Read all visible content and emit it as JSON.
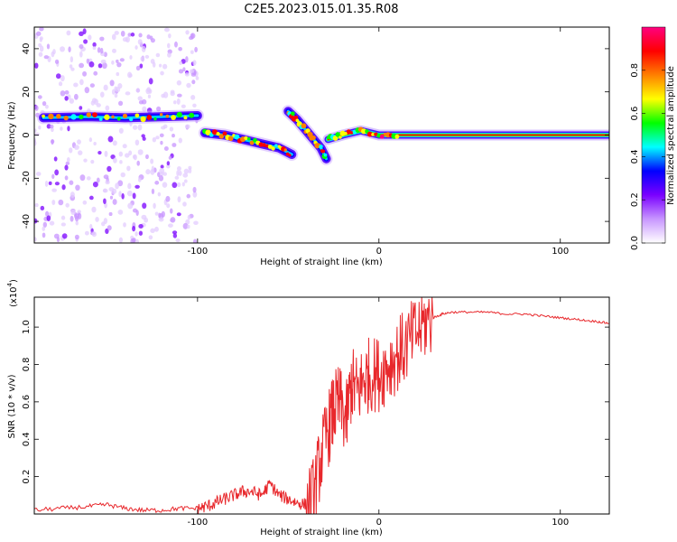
{
  "title": "C2E5.2023.015.01.35.R08",
  "chart_data": [
    {
      "type": "heatmap",
      "title": "",
      "xlabel": "Height of straight line (km)",
      "ylabel": "Frequency (Hz)",
      "xlim": [
        -190,
        127
      ],
      "ylim": [
        -50,
        50
      ],
      "xticks": [
        -100,
        0,
        100
      ],
      "yticks": [
        -40,
        -20,
        0,
        20,
        40
      ],
      "colorbar": {
        "label": "Normalized spectral amplitude",
        "range": [
          0.0,
          1.0
        ],
        "ticks": [
          "0.0",
          "0.2",
          "0.4",
          "0.6",
          "0.8"
        ],
        "tick_values": [
          0.0,
          0.2,
          0.4,
          0.6,
          0.8
        ],
        "colormap": [
          "#ffffff",
          "#c896ff",
          "#7a00ff",
          "#0000ff",
          "#00ffff",
          "#00ff00",
          "#ffff00",
          "#ff8000",
          "#ff0000",
          "#ff0080"
        ]
      },
      "ridge": {
        "segments": [
          {
            "x": [
              -185,
              -160,
              -140,
              -120,
              -100
            ],
            "y": [
              8,
              8.5,
              8,
              8.5,
              9
            ]
          },
          {
            "x": [
              -96,
              -85,
              -75,
              -65,
              -55,
              -48
            ],
            "y": [
              1,
              0,
              -2,
              -4,
              -6,
              -9
            ]
          },
          {
            "x": [
              -50,
              -45,
              -38,
              -32,
              -29
            ],
            "y": [
              11,
              7,
              0,
              -6,
              -11
            ]
          },
          {
            "x": [
              -28,
              -20,
              -10,
              0,
              10,
              127
            ],
            "y": [
              -2,
              0,
              2,
              0,
              0,
              0
            ]
          }
        ]
      },
      "noise_band": {
        "x": [
          -190,
          -100
        ],
        "y": [
          -50,
          50
        ]
      }
    },
    {
      "type": "line",
      "title": "",
      "xlabel": "Height of straight line (km)",
      "ylabel": "SNR (10 * v/v)",
      "multiplier": "(x10",
      "exponent": "4",
      "multiplier_close": ")",
      "xlim": [
        -190,
        127
      ],
      "ylim": [
        0.0,
        1.16
      ],
      "xticks": [
        -100,
        0,
        100
      ],
      "yticks": [
        "0.2",
        "0.4",
        "0.6",
        "0.8",
        "1.0"
      ],
      "ytick_values": [
        0.2,
        0.4,
        0.6,
        0.8,
        1.0
      ],
      "series": [
        {
          "color": "#e8282c",
          "x": [
            -190,
            -175,
            -160,
            -150,
            -140,
            -130,
            -120,
            -110,
            -100,
            -95,
            -90,
            -85,
            -80,
            -75,
            -70,
            -65,
            -60,
            -55,
            -50,
            -45,
            -40,
            -36,
            -32,
            -28,
            -25,
            -22,
            -18,
            -15,
            -12,
            -8,
            -5,
            0,
            5,
            10,
            15,
            20,
            25,
            30,
            35,
            40,
            50,
            60,
            70,
            80,
            90,
            100,
            110,
            120,
            127
          ],
          "y": [
            0.02,
            0.03,
            0.04,
            0.05,
            0.03,
            0.02,
            0.02,
            0.03,
            0.03,
            0.04,
            0.06,
            0.08,
            0.1,
            0.12,
            0.12,
            0.1,
            0.16,
            0.1,
            0.08,
            0.06,
            0.05,
            0.1,
            0.3,
            0.45,
            0.55,
            0.6,
            0.5,
            0.7,
            0.65,
            0.72,
            0.75,
            0.75,
            0.8,
            0.85,
            0.9,
            0.96,
            1.02,
            1.05,
            1.07,
            1.08,
            1.08,
            1.08,
            1.07,
            1.07,
            1.06,
            1.05,
            1.04,
            1.03,
            1.02
          ]
        }
      ]
    }
  ]
}
